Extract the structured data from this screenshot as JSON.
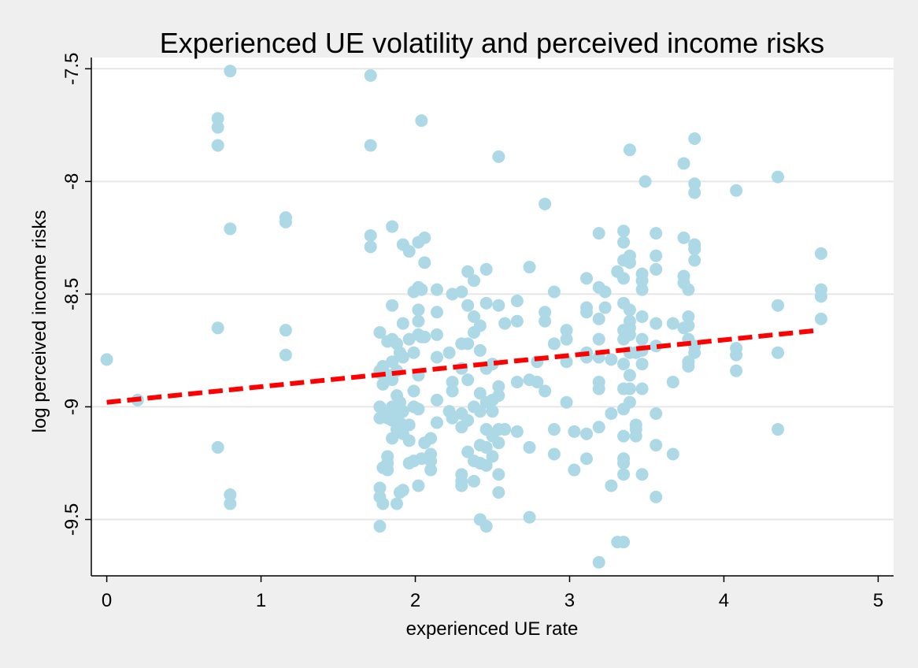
{
  "chart_data": {
    "type": "scatter",
    "title": "Experienced UE volatility and perceived income risks",
    "xlabel": "experienced UE rate",
    "ylabel": "log perceived income risks",
    "xlim": [
      -0.1,
      5.1
    ],
    "ylim": [
      -9.75,
      -7.45
    ],
    "xticks": [
      0,
      1,
      2,
      3,
      4,
      5
    ],
    "yticks": [
      -7.5,
      -8,
      -8.5,
      -9,
      -9.5
    ],
    "xtick_labels": [
      "0",
      "1",
      "2",
      "3",
      "4",
      "5"
    ],
    "ytick_labels": [
      "-7.5",
      "-8",
      "-8.5",
      "-9",
      "-9.5"
    ],
    "grid": true,
    "legend": "none",
    "colors": {
      "points": "#add8e6",
      "fit_line": "#ff0000",
      "plot_bg": "#ffffff",
      "page_bg": "#efefef",
      "grid": "#e6e6e6"
    },
    "fit_line": {
      "x": [
        0,
        4.62
      ],
      "y": [
        -8.98,
        -8.66
      ],
      "style": "dashed"
    },
    "series": [
      {
        "points": [
          [
            0.0,
            -8.79
          ],
          [
            0.2,
            -8.97
          ],
          [
            0.72,
            -7.72
          ],
          [
            0.72,
            -7.76
          ],
          [
            0.72,
            -7.84
          ],
          [
            0.72,
            -8.65
          ],
          [
            0.72,
            -9.18
          ],
          [
            0.8,
            -7.51
          ],
          [
            0.8,
            -8.21
          ],
          [
            0.8,
            -9.39
          ],
          [
            0.8,
            -9.43
          ],
          [
            1.16,
            -8.16
          ],
          [
            1.16,
            -8.18
          ],
          [
            1.16,
            -8.66
          ],
          [
            1.16,
            -8.77
          ],
          [
            1.71,
            -7.53
          ],
          [
            1.71,
            -7.84
          ],
          [
            1.71,
            -8.24
          ],
          [
            1.71,
            -8.29
          ],
          [
            1.77,
            -8.67
          ],
          [
            1.77,
            -8.84
          ],
          [
            1.77,
            -8.85
          ],
          [
            1.77,
            -9.0
          ],
          [
            1.77,
            -9.05
          ],
          [
            1.77,
            -9.36
          ],
          [
            1.77,
            -9.4
          ],
          [
            1.77,
            -9.53
          ],
          [
            1.79,
            -8.82
          ],
          [
            1.79,
            -8.9
          ],
          [
            1.79,
            -9.02
          ],
          [
            1.79,
            -9.43
          ],
          [
            1.79,
            -9.27
          ],
          [
            1.82,
            -8.71
          ],
          [
            1.82,
            -8.86
          ],
          [
            1.82,
            -9.05
          ],
          [
            1.82,
            -9.22
          ],
          [
            1.82,
            -9.25
          ],
          [
            1.82,
            -9.28
          ],
          [
            1.85,
            -8.2
          ],
          [
            1.85,
            -8.55
          ],
          [
            1.85,
            -8.7
          ],
          [
            1.85,
            -8.8
          ],
          [
            1.85,
            -8.88
          ],
          [
            1.85,
            -9.0
          ],
          [
            1.85,
            -9.06
          ],
          [
            1.85,
            -9.14
          ],
          [
            1.88,
            -8.72
          ],
          [
            1.88,
            -8.84
          ],
          [
            1.88,
            -8.95
          ],
          [
            1.88,
            -9.03
          ],
          [
            1.88,
            -9.1
          ],
          [
            1.88,
            -9.43
          ],
          [
            1.9,
            -8.76
          ],
          [
            1.9,
            -8.98
          ],
          [
            1.9,
            -9.07
          ],
          [
            1.9,
            -9.38
          ],
          [
            1.92,
            -8.28
          ],
          [
            1.92,
            -8.63
          ],
          [
            1.92,
            -8.78
          ],
          [
            1.92,
            -9.02
          ],
          [
            1.92,
            -9.12
          ],
          [
            1.92,
            -9.37
          ],
          [
            1.96,
            -8.31
          ],
          [
            1.96,
            -8.7
          ],
          [
            1.96,
            -9.08
          ],
          [
            1.96,
            -9.15
          ],
          [
            1.96,
            -9.25
          ],
          [
            1.99,
            -8.49
          ],
          [
            1.99,
            -8.76
          ],
          [
            1.99,
            -8.93
          ],
          [
            1.99,
            -9.0
          ],
          [
            1.99,
            -9.24
          ],
          [
            2.02,
            -8.27
          ],
          [
            2.02,
            -8.47
          ],
          [
            2.02,
            -8.57
          ],
          [
            2.02,
            -8.62
          ],
          [
            2.02,
            -8.68
          ],
          [
            2.02,
            -8.86
          ],
          [
            2.02,
            -9.01
          ],
          [
            2.02,
            -9.35
          ],
          [
            2.04,
            -7.73
          ],
          [
            2.04,
            -8.48
          ],
          [
            2.04,
            -8.69
          ],
          [
            2.04,
            -9.23
          ],
          [
            2.06,
            -8.25
          ],
          [
            2.06,
            -8.36
          ],
          [
            2.06,
            -8.69
          ],
          [
            2.06,
            -9.16
          ],
          [
            2.1,
            -9.14
          ],
          [
            2.1,
            -9.21
          ],
          [
            2.1,
            -9.24
          ],
          [
            2.1,
            -9.28
          ],
          [
            2.14,
            -8.48
          ],
          [
            2.14,
            -8.58
          ],
          [
            2.14,
            -8.68
          ],
          [
            2.14,
            -8.78
          ],
          [
            2.14,
            -8.97
          ],
          [
            2.14,
            -9.07
          ],
          [
            2.22,
            -8.76
          ],
          [
            2.22,
            -9.02
          ],
          [
            2.24,
            -8.5
          ],
          [
            2.24,
            -8.89
          ],
          [
            2.24,
            -8.93
          ],
          [
            2.24,
            -9.05
          ],
          [
            2.3,
            -8.49
          ],
          [
            2.3,
            -8.72
          ],
          [
            2.3,
            -8.83
          ],
          [
            2.3,
            -9.03
          ],
          [
            2.3,
            -9.09
          ],
          [
            2.3,
            -9.3
          ],
          [
            2.3,
            -9.33
          ],
          [
            2.3,
            -9.35
          ],
          [
            2.34,
            -8.4
          ],
          [
            2.34,
            -8.55
          ],
          [
            2.34,
            -8.72
          ],
          [
            2.34,
            -8.88
          ],
          [
            2.34,
            -9.06
          ],
          [
            2.34,
            -9.2
          ],
          [
            2.38,
            -8.44
          ],
          [
            2.38,
            -8.67
          ],
          [
            2.38,
            -8.6
          ],
          [
            2.38,
            -9.0
          ],
          [
            2.38,
            -9.24
          ],
          [
            2.38,
            -9.33
          ],
          [
            2.42,
            -8.64
          ],
          [
            2.42,
            -8.75
          ],
          [
            2.42,
            -8.94
          ],
          [
            2.42,
            -9.02
          ],
          [
            2.42,
            -9.17
          ],
          [
            2.42,
            -9.25
          ],
          [
            2.42,
            -9.5
          ],
          [
            2.46,
            -8.39
          ],
          [
            2.46,
            -8.54
          ],
          [
            2.46,
            -8.83
          ],
          [
            2.46,
            -8.98
          ],
          [
            2.46,
            -9.1
          ],
          [
            2.46,
            -9.18
          ],
          [
            2.46,
            -9.26
          ],
          [
            2.46,
            -9.53
          ],
          [
            2.5,
            -8.81
          ],
          [
            2.5,
            -8.97
          ],
          [
            2.5,
            -9.02
          ],
          [
            2.5,
            -9.13
          ],
          [
            2.5,
            -9.22
          ],
          [
            2.54,
            -7.89
          ],
          [
            2.54,
            -8.55
          ],
          [
            2.54,
            -8.91
          ],
          [
            2.54,
            -8.95
          ],
          [
            2.54,
            -9.1
          ],
          [
            2.54,
            -9.16
          ],
          [
            2.54,
            -9.3
          ],
          [
            2.54,
            -9.38
          ],
          [
            2.58,
            -8.63
          ],
          [
            2.58,
            -9.1
          ],
          [
            2.66,
            -8.53
          ],
          [
            2.66,
            -8.62
          ],
          [
            2.66,
            -8.89
          ],
          [
            2.66,
            -9.11
          ],
          [
            2.74,
            -8.38
          ],
          [
            2.74,
            -8.88
          ],
          [
            2.74,
            -9.18
          ],
          [
            2.74,
            -9.49
          ],
          [
            2.79,
            -8.8
          ],
          [
            2.79,
            -8.89
          ],
          [
            2.84,
            -8.1
          ],
          [
            2.84,
            -8.58
          ],
          [
            2.84,
            -8.62
          ],
          [
            2.84,
            -8.93
          ],
          [
            2.9,
            -8.49
          ],
          [
            2.9,
            -8.72
          ],
          [
            2.9,
            -9.1
          ],
          [
            2.9,
            -9.21
          ],
          [
            2.98,
            -8.66
          ],
          [
            2.98,
            -8.7
          ],
          [
            2.98,
            -8.8
          ],
          [
            2.98,
            -8.98
          ],
          [
            3.03,
            -9.11
          ],
          [
            3.03,
            -9.28
          ],
          [
            3.11,
            -8.43
          ],
          [
            3.11,
            -8.56
          ],
          [
            3.11,
            -8.58
          ],
          [
            3.11,
            -8.76
          ],
          [
            3.11,
            -8.78
          ],
          [
            3.11,
            -9.12
          ],
          [
            3.11,
            -9.23
          ],
          [
            3.19,
            -8.23
          ],
          [
            3.19,
            -8.47
          ],
          [
            3.19,
            -8.61
          ],
          [
            3.19,
            -8.7
          ],
          [
            3.19,
            -8.78
          ],
          [
            3.19,
            -8.89
          ],
          [
            3.19,
            -8.92
          ],
          [
            3.19,
            -9.09
          ],
          [
            3.19,
            -9.69
          ],
          [
            3.23,
            -8.49
          ],
          [
            3.23,
            -8.56
          ],
          [
            3.27,
            -8.79
          ],
          [
            3.27,
            -9.03
          ],
          [
            3.27,
            -9.35
          ],
          [
            3.31,
            -8.4
          ],
          [
            3.31,
            -9.6
          ],
          [
            3.35,
            -8.22
          ],
          [
            3.35,
            -8.27
          ],
          [
            3.35,
            -8.35
          ],
          [
            3.35,
            -8.43
          ],
          [
            3.35,
            -8.54
          ],
          [
            3.35,
            -8.66
          ],
          [
            3.35,
            -8.7
          ],
          [
            3.35,
            -8.81
          ],
          [
            3.35,
            -8.92
          ],
          [
            3.35,
            -9.01
          ],
          [
            3.35,
            -9.13
          ],
          [
            3.35,
            -9.23
          ],
          [
            3.35,
            -9.25
          ],
          [
            3.35,
            -9.3
          ],
          [
            3.35,
            -9.6
          ],
          [
            3.39,
            -7.86
          ],
          [
            3.39,
            -8.33
          ],
          [
            3.39,
            -8.36
          ],
          [
            3.39,
            -8.57
          ],
          [
            3.39,
            -8.62
          ],
          [
            3.39,
            -8.65
          ],
          [
            3.39,
            -8.68
          ],
          [
            3.39,
            -8.76
          ],
          [
            3.39,
            -8.86
          ],
          [
            3.39,
            -8.92
          ],
          [
            3.39,
            -8.98
          ],
          [
            3.43,
            -8.76
          ],
          [
            3.43,
            -9.08
          ],
          [
            3.43,
            -9.1
          ],
          [
            3.43,
            -9.13
          ],
          [
            3.47,
            -8.41
          ],
          [
            3.47,
            -8.44
          ],
          [
            3.47,
            -8.48
          ],
          [
            3.47,
            -8.6
          ],
          [
            3.47,
            -8.7
          ],
          [
            3.47,
            -8.75
          ],
          [
            3.47,
            -8.81
          ],
          [
            3.47,
            -8.92
          ],
          [
            3.47,
            -9.3
          ],
          [
            3.49,
            -8.0
          ],
          [
            3.56,
            -8.23
          ],
          [
            3.56,
            -8.33
          ],
          [
            3.56,
            -8.39
          ],
          [
            3.56,
            -8.63
          ],
          [
            3.56,
            -8.73
          ],
          [
            3.56,
            -9.03
          ],
          [
            3.56,
            -9.17
          ],
          [
            3.56,
            -9.4
          ],
          [
            3.67,
            -8.63
          ],
          [
            3.67,
            -8.89
          ],
          [
            3.67,
            -9.21
          ],
          [
            3.74,
            -7.92
          ],
          [
            3.74,
            -8.25
          ],
          [
            3.74,
            -8.42
          ],
          [
            3.74,
            -8.45
          ],
          [
            3.74,
            -8.65
          ],
          [
            3.77,
            -8.48
          ],
          [
            3.77,
            -8.6
          ],
          [
            3.77,
            -8.64
          ],
          [
            3.77,
            -8.7
          ],
          [
            3.77,
            -8.8
          ],
          [
            3.77,
            -8.82
          ],
          [
            3.81,
            -7.81
          ],
          [
            3.81,
            -8.01
          ],
          [
            3.81,
            -8.05
          ],
          [
            3.81,
            -8.28
          ],
          [
            3.81,
            -8.3
          ],
          [
            3.81,
            -8.35
          ],
          [
            3.81,
            -8.73
          ],
          [
            3.81,
            -8.76
          ],
          [
            4.08,
            -8.04
          ],
          [
            4.08,
            -8.74
          ],
          [
            4.08,
            -8.77
          ],
          [
            4.08,
            -8.84
          ],
          [
            4.35,
            -7.98
          ],
          [
            4.35,
            -8.55
          ],
          [
            4.35,
            -8.76
          ],
          [
            4.35,
            -9.1
          ],
          [
            4.63,
            -8.32
          ],
          [
            4.63,
            -8.48
          ],
          [
            4.63,
            -8.51
          ],
          [
            4.63,
            -8.61
          ]
        ]
      }
    ]
  }
}
